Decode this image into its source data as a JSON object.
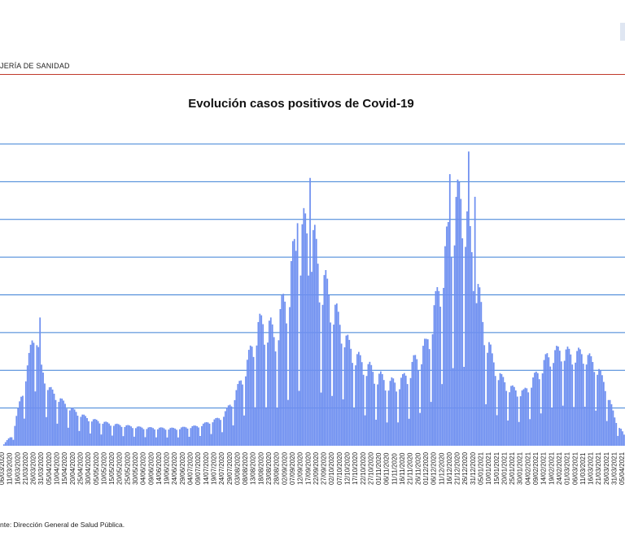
{
  "header": {
    "org_text": "JERÍA DE SANIDAD"
  },
  "chart_data": {
    "type": "bar",
    "title": "Evolución casos positivos de Covid-19",
    "xlabel": "",
    "ylabel": "",
    "grid": true,
    "ylim": [
      0,
      8
    ],
    "x_tick_labels": [
      "06/03/2020",
      "11/03/2020",
      "16/03/2020",
      "21/03/2020",
      "26/03/2020",
      "31/03/2020",
      "05/04/2020",
      "10/04/2020",
      "15/04/2020",
      "20/04/2020",
      "25/04/2020",
      "30/04/2020",
      "05/05/2020",
      "10/05/2020",
      "15/05/2020",
      "20/05/2020",
      "25/05/2020",
      "30/05/2020",
      "04/06/2020",
      "09/06/2020",
      "14/06/2020",
      "19/06/2020",
      "24/06/2020",
      "29/06/2020",
      "04/07/2020",
      "09/07/2020",
      "14/07/2020",
      "19/07/2020",
      "24/07/2020",
      "29/07/2020",
      "03/08/2020",
      "08/08/2020",
      "13/08/2020",
      "18/08/2020",
      "23/08/2020",
      "28/08/2020",
      "02/09/2020",
      "07/09/2020",
      "12/09/2020",
      "17/09/2020",
      "22/09/2020",
      "27/09/2020",
      "02/10/2020",
      "07/10/2020",
      "12/10/2020",
      "17/10/2020",
      "22/10/2020",
      "27/10/2020",
      "01/11/2020",
      "06/11/2020",
      "11/11/2020",
      "16/11/2020",
      "21/11/2020",
      "26/11/2020",
      "01/12/2020",
      "06/12/2020",
      "11/12/2020",
      "16/12/2020",
      "21/12/2020",
      "26/12/2020",
      "31/12/2020",
      "05/01/2021",
      "10/01/2021",
      "15/01/2021",
      "20/01/2021",
      "25/01/2021",
      "30/01/2021",
      "04/02/2021",
      "09/02/2021",
      "14/02/2021",
      "19/02/2021",
      "24/02/2021",
      "01/03/2021",
      "06/03/2021",
      "11/03/2021",
      "16/03/2021",
      "21/03/2021",
      "26/03/2021",
      "31/03/2021",
      "05/04/2021",
      "10/04/2021",
      "15/04/2021",
      "20/04/2021",
      "25/04/2021",
      "30/04/2021",
      "05/05/2021",
      "10/05/2021",
      "15/05/2021"
    ],
    "series_color": "#6e8ff0",
    "grid_color": "#3a7fd5",
    "trend_keypoints": [
      [
        0,
        0.0
      ],
      [
        6,
        0.15
      ],
      [
        10,
        0.6
      ],
      [
        16,
        1.5
      ],
      [
        21,
        2.4
      ],
      [
        24,
        1.6
      ],
      [
        30,
        1.1
      ],
      [
        38,
        0.9
      ],
      [
        45,
        0.72
      ],
      [
        55,
        0.55
      ],
      [
        70,
        0.45
      ],
      [
        90,
        0.38
      ],
      [
        110,
        0.36
      ],
      [
        125,
        0.42
      ],
      [
        140,
        0.6
      ],
      [
        147,
        0.9
      ],
      [
        155,
        1.4
      ],
      [
        162,
        1.75
      ],
      [
        168,
        1.7
      ],
      [
        173,
        1.6
      ],
      [
        180,
        1.9
      ],
      [
        188,
        2.4
      ],
      [
        196,
        2.6
      ],
      [
        203,
        2.35
      ],
      [
        210,
        2.2
      ],
      [
        217,
        2.05
      ],
      [
        224,
        1.65
      ],
      [
        232,
        1.3
      ],
      [
        240,
        1.1
      ],
      [
        247,
        1.0
      ],
      [
        255,
        1.05
      ],
      [
        262,
        1.3
      ],
      [
        270,
        1.6
      ],
      [
        278,
        2.5
      ],
      [
        286,
        3.4
      ],
      [
        293,
        3.6
      ],
      [
        300,
        2.8
      ],
      [
        306,
        2.0
      ],
      [
        312,
        1.5
      ],
      [
        318,
        1.2
      ],
      [
        325,
        1.05
      ],
      [
        332,
        1.05
      ],
      [
        340,
        1.3
      ],
      [
        347,
        1.6
      ],
      [
        355,
        1.8
      ],
      [
        362,
        1.7
      ],
      [
        370,
        1.75
      ],
      [
        378,
        1.55
      ],
      [
        384,
        1.2
      ],
      [
        390,
        0.55
      ],
      [
        396,
        0.2
      ]
    ],
    "peak_keypoints": [
      [
        0,
        0.0
      ],
      [
        6,
        0.3
      ],
      [
        10,
        1.0
      ],
      [
        16,
        2.2
      ],
      [
        21,
        3.5
      ],
      [
        24,
        2.3
      ],
      [
        30,
        1.6
      ],
      [
        38,
        1.25
      ],
      [
        45,
        1.0
      ],
      [
        55,
        0.75
      ],
      [
        70,
        0.6
      ],
      [
        90,
        0.5
      ],
      [
        110,
        0.48
      ],
      [
        125,
        0.55
      ],
      [
        140,
        0.8
      ],
      [
        147,
        1.3
      ],
      [
        155,
        2.2
      ],
      [
        162,
        3.4
      ],
      [
        168,
        3.7
      ],
      [
        173,
        3.2
      ],
      [
        180,
        4.3
      ],
      [
        188,
        6.1
      ],
      [
        196,
        6.5
      ],
      [
        203,
        5.0
      ],
      [
        210,
        4.2
      ],
      [
        217,
        3.2
      ],
      [
        224,
        2.6
      ],
      [
        232,
        2.3
      ],
      [
        240,
        2.0
      ],
      [
        247,
        1.8
      ],
      [
        255,
        1.9
      ],
      [
        262,
        2.4
      ],
      [
        270,
        2.9
      ],
      [
        278,
        4.5
      ],
      [
        286,
        6.6
      ],
      [
        293,
        7.4
      ],
      [
        300,
        5.4
      ],
      [
        306,
        3.6
      ],
      [
        312,
        2.5
      ],
      [
        318,
        1.9
      ],
      [
        325,
        1.6
      ],
      [
        332,
        1.5
      ],
      [
        340,
        2.0
      ],
      [
        347,
        2.5
      ],
      [
        355,
        2.7
      ],
      [
        362,
        2.6
      ],
      [
        370,
        2.6
      ],
      [
        378,
        2.3
      ],
      [
        384,
        1.7
      ],
      [
        390,
        0.8
      ],
      [
        396,
        0.3
      ]
    ],
    "spike_days": [
      [
        24,
        3.4
      ],
      [
        188,
        5.9
      ],
      [
        196,
        7.1
      ],
      [
        285,
        7.2
      ],
      [
        297,
        7.8
      ],
      [
        301,
        6.6
      ]
    ]
  },
  "footer": {
    "source_text": "nte: Dirección General de Salud Pública."
  }
}
